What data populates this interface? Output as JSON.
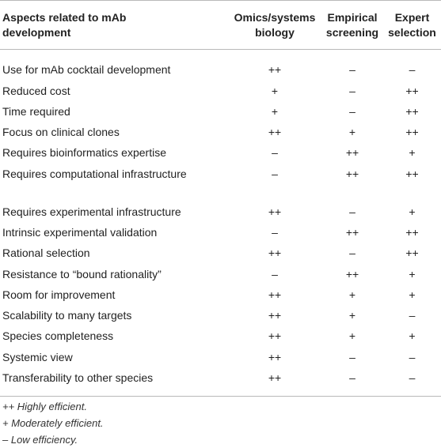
{
  "table": {
    "headers": [
      {
        "line1": "Aspects related to mAb",
        "line2": "development"
      },
      {
        "line1": "Omics/systems",
        "line2": "biology"
      },
      {
        "line1": "Empirical",
        "line2": "screening"
      },
      {
        "line1": "Expert",
        "line2": "selection"
      }
    ],
    "rows": [
      {
        "aspect": "Use for mAb cocktail development",
        "omics": "++",
        "empirical": "–",
        "expert": "–"
      },
      {
        "aspect": "Reduced cost",
        "omics": "+",
        "empirical": "–",
        "expert": "++"
      },
      {
        "aspect": "Time required",
        "omics": "+",
        "empirical": "–",
        "expert": "++"
      },
      {
        "aspect": "Focus on clinical clones",
        "omics": "++",
        "empirical": "+",
        "expert": "++"
      },
      {
        "aspect": "Requires bioinformatics expertise",
        "omics": "–",
        "empirical": "++",
        "expert": "+"
      },
      {
        "aspect": "Requires computational infrastructure",
        "omics": "–",
        "empirical": "++",
        "expert": "++"
      },
      {
        "aspect": "Requires experimental infrastructure",
        "omics": "++",
        "empirical": "–",
        "expert": "+"
      },
      {
        "aspect": "Intrinsic experimental validation",
        "omics": "–",
        "empirical": "++",
        "expert": "++"
      },
      {
        "aspect": "Rational selection",
        "omics": "++",
        "empirical": "–",
        "expert": "++"
      },
      {
        "aspect": "Resistance to “bound rationality”",
        "omics": "–",
        "empirical": "++",
        "expert": "+"
      },
      {
        "aspect": "Room for improvement",
        "omics": "++",
        "empirical": "+",
        "expert": "+"
      },
      {
        "aspect": "Scalability to many targets",
        "omics": "++",
        "empirical": "+",
        "expert": "–"
      },
      {
        "aspect": "Species completeness",
        "omics": "++",
        "empirical": "+",
        "expert": "+"
      },
      {
        "aspect": "Systemic view",
        "omics": "++",
        "empirical": "–",
        "expert": "–"
      },
      {
        "aspect": "Transferability to other species",
        "omics": "++",
        "empirical": "–",
        "expert": "–"
      }
    ]
  },
  "footnotes": {
    "high": "++ Highly efficient.",
    "moderate": "+ Moderately efficient.",
    "low": "– Low efficiency."
  }
}
